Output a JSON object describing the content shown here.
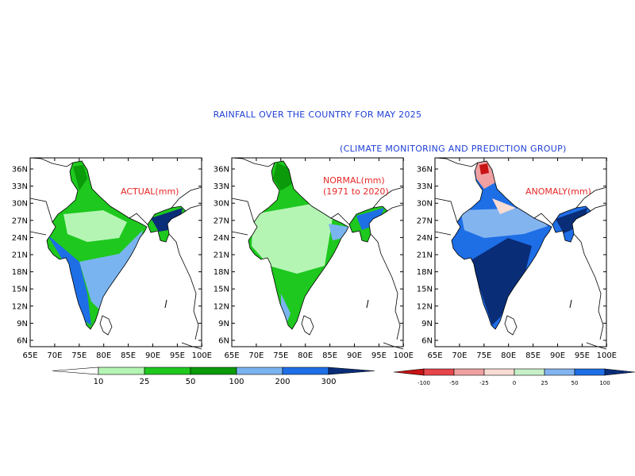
{
  "title": "RAINFALL OVER THE COUNTRY FOR MAY 2025",
  "subtitle": "(CLIMATE MONITORING AND PREDICTION GROUP)",
  "lat_ticks": [
    "36N",
    "33N",
    "30N",
    "27N",
    "24N",
    "21N",
    "18N",
    "15N",
    "12N",
    "9N",
    "6N"
  ],
  "lon_ticks": [
    "65E",
    "70E",
    "75E",
    "80E",
    "85E",
    "90E",
    "95E",
    "100E"
  ],
  "panels": [
    {
      "id": "actual",
      "label": "ACTUAL(mm)",
      "label2": ""
    },
    {
      "id": "normal",
      "label": "NORMAL(mm)",
      "label2": "(1971 to 2020)"
    },
    {
      "id": "anomaly",
      "label": "ANOMALY(mm)",
      "label2": ""
    }
  ],
  "legend_rain": {
    "ticks": [
      "10",
      "25",
      "50",
      "100",
      "200",
      "300"
    ],
    "colors": [
      "#ffffff",
      "#b4f5b4",
      "#1ec81e",
      "#0a9a0a",
      "#7ab4f0",
      "#1e6ee6",
      "#0a2d78"
    ]
  },
  "legend_anom": {
    "ticks": [
      "-100",
      "-50",
      "-25",
      "0",
      "25",
      "50",
      "100"
    ],
    "colors": [
      "#c81414",
      "#e6454b",
      "#f0a0a0",
      "#fadcd2",
      "#c8f0c8",
      "#82b4f0",
      "#1e6ee6",
      "#0a2d78"
    ]
  },
  "colors": {
    "title": "#1f3fd6",
    "panel_label": "#e62828"
  }
}
